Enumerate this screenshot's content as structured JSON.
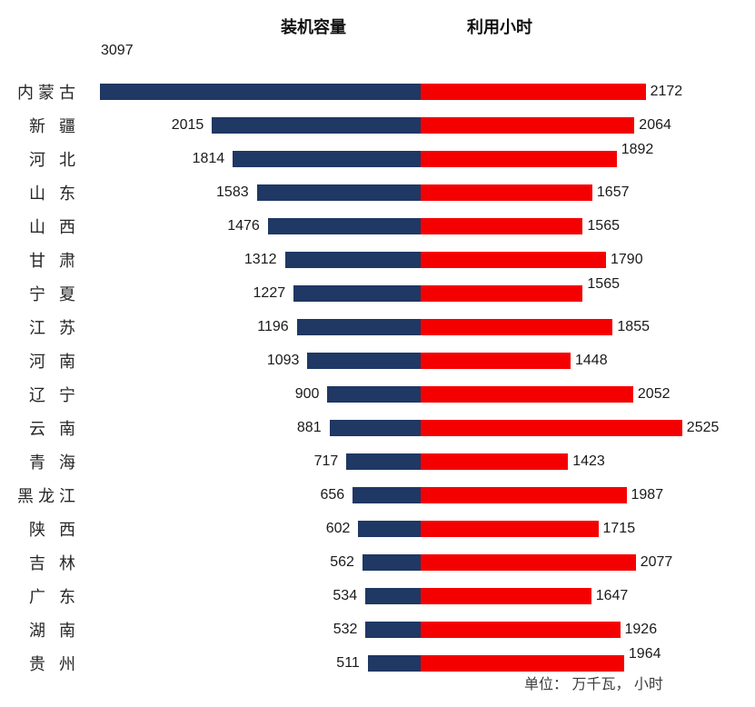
{
  "legend": {
    "capacity": "装机容量",
    "hours": "利用小时"
  },
  "unit_note": "单位： 万千瓦， 小时",
  "colors": {
    "capacity_bar": "#1F3864",
    "hours_bar": "#F40000"
  },
  "chart_data": {
    "type": "bar",
    "subtype": "horizontal-diverging",
    "title": "",
    "categories": [
      "内蒙古",
      "新 疆",
      "河 北",
      "山 东",
      "山 西",
      "甘 肃",
      "宁 夏",
      "江 苏",
      "河 南",
      "辽 宁",
      "云 南",
      "青 海",
      "黑龙江",
      "陕 西",
      "吉 林",
      "广 东",
      "湖 南",
      "贵 州"
    ],
    "series": [
      {
        "name": "装机容量",
        "direction": "left",
        "color": "#1F3864",
        "values": [
          3097,
          2015,
          1814,
          1583,
          1476,
          1312,
          1227,
          1196,
          1093,
          900,
          881,
          717,
          656,
          602,
          562,
          534,
          532,
          511
        ]
      },
      {
        "name": "利用小时",
        "direction": "right",
        "color": "#F40000",
        "values": [
          2172,
          2064,
          1892,
          1657,
          1565,
          1790,
          1565,
          1855,
          1448,
          2052,
          2525,
          1423,
          1987,
          1715,
          2077,
          1647,
          1926,
          1964
        ]
      }
    ],
    "unit": "万千瓦, 小时",
    "value_axis_max": 3097,
    "grid": false,
    "legend_position": "top",
    "data_labels": "outside-end",
    "layout_hints": {
      "capacity_label_above_index": 0,
      "hours_label_raised_indices": [
        2,
        6,
        17
      ]
    }
  }
}
